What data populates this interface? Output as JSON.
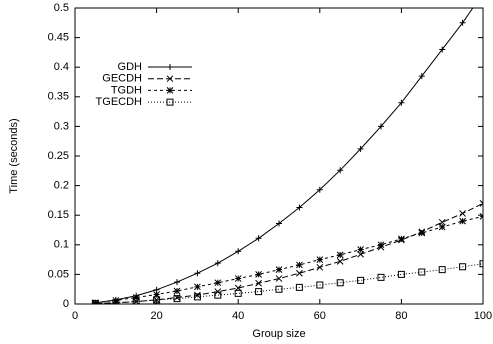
{
  "chart_data": {
    "type": "line",
    "xlabel": "Group size",
    "ylabel": "Time (seconds)",
    "x": [
      5,
      10,
      15,
      20,
      25,
      30,
      35,
      40,
      45,
      50,
      55,
      60,
      65,
      70,
      75,
      80,
      85,
      90,
      95,
      100
    ],
    "series": [
      {
        "name": "GDH",
        "color": "#000000",
        "marker": "plus",
        "dash": "none",
        "values": [
          0.002,
          0.007,
          0.014,
          0.024,
          0.037,
          0.052,
          0.069,
          0.089,
          0.111,
          0.136,
          0.163,
          0.193,
          0.226,
          0.262,
          0.3,
          0.34,
          0.385,
          0.43,
          0.475,
          0.525
        ]
      },
      {
        "name": "GECDH",
        "color": "#000000",
        "marker": "cross",
        "dash": "6,3",
        "values": [
          0.001,
          0.002,
          0.004,
          0.007,
          0.011,
          0.015,
          0.021,
          0.027,
          0.035,
          0.043,
          0.052,
          0.062,
          0.072,
          0.084,
          0.096,
          0.108,
          0.122,
          0.138,
          0.153,
          0.17
        ]
      },
      {
        "name": "TGDH",
        "color": "#000000",
        "marker": "star",
        "dash": "3,3",
        "values": [
          0.002,
          0.006,
          0.011,
          0.016,
          0.022,
          0.029,
          0.036,
          0.043,
          0.05,
          0.058,
          0.066,
          0.075,
          0.083,
          0.092,
          0.1,
          0.11,
          0.12,
          0.13,
          0.14,
          0.148
        ]
      },
      {
        "name": "TGECDH",
        "color": "#000000",
        "marker": "square",
        "dash": "1,2",
        "values": [
          0.001,
          0.002,
          0.004,
          0.007,
          0.009,
          0.012,
          0.015,
          0.018,
          0.021,
          0.025,
          0.028,
          0.032,
          0.036,
          0.04,
          0.045,
          0.05,
          0.054,
          0.058,
          0.063,
          0.068
        ]
      }
    ],
    "xlim": [
      0,
      100
    ],
    "xticks": [
      0,
      20,
      40,
      60,
      80,
      100
    ],
    "ylim": [
      0,
      0.5
    ],
    "yticks": [
      0,
      0.05,
      0.1,
      0.15,
      0.2,
      0.25,
      0.3,
      0.35,
      0.4,
      0.45,
      0.5
    ],
    "grid": false,
    "legend": "upper left"
  }
}
